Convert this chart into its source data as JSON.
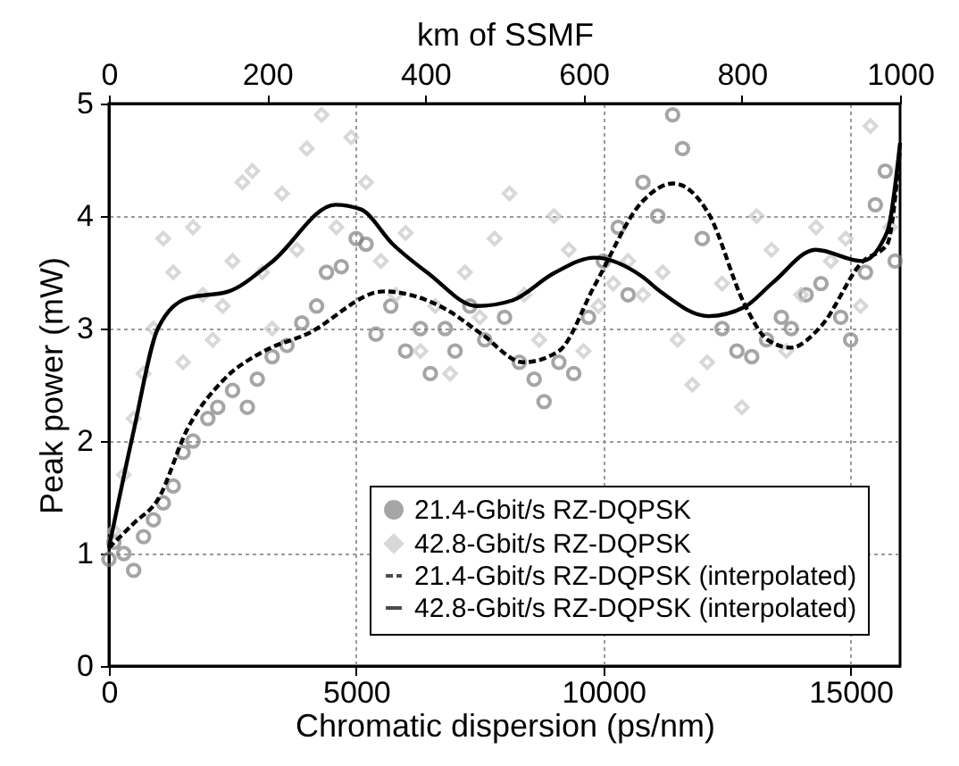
{
  "chart_data": {
    "type": "scatter",
    "xlabel": "Chromatic dispersion (ps/nm)",
    "ylabel": "Peak power (mW)",
    "x2label": "km of SSMF",
    "xlim": [
      0,
      16000
    ],
    "xticks": [
      0,
      5000,
      10000,
      15000
    ],
    "ylim": [
      0,
      5
    ],
    "yticks": [
      0,
      1,
      2,
      3,
      4,
      5
    ],
    "x2lim": [
      0,
      1000
    ],
    "x2ticks": [
      0,
      200,
      400,
      600,
      800,
      1000
    ],
    "grid": true,
    "legend": "bottom right",
    "series": [
      {
        "name": "21.4-Gbit/s RZ-DQPSK",
        "marker": "circle",
        "color": "#808080",
        "x": [
          0,
          100,
          300,
          500,
          700,
          900,
          1100,
          1300,
          1500,
          1700,
          2000,
          2200,
          2500,
          2800,
          3000,
          3300,
          3600,
          3900,
          4200,
          4400,
          4700,
          5000,
          5200,
          5400,
          5700,
          6000,
          6300,
          6500,
          6800,
          7000,
          7300,
          7600,
          8000,
          8300,
          8600,
          8800,
          9100,
          9400,
          9700,
          10000,
          10300,
          10500,
          10800,
          11100,
          11400,
          11600,
          12000,
          12400,
          12700,
          13000,
          13300,
          13600,
          13800,
          14100,
          14400,
          14800,
          15000,
          15300,
          15500,
          15700,
          15900
        ],
        "values": [
          0.95,
          1.1,
          1.0,
          0.85,
          1.15,
          1.3,
          1.45,
          1.6,
          1.9,
          2.0,
          2.2,
          2.3,
          2.45,
          2.3,
          2.55,
          2.75,
          2.85,
          3.05,
          3.2,
          3.5,
          3.55,
          3.8,
          3.75,
          2.95,
          3.2,
          2.8,
          3.0,
          2.6,
          3.0,
          2.8,
          3.2,
          2.9,
          3.1,
          2.7,
          2.55,
          2.35,
          2.7,
          2.6,
          3.1,
          3.6,
          3.9,
          3.3,
          4.3,
          4.0,
          4.9,
          4.6,
          3.8,
          3.0,
          2.8,
          2.75,
          2.9,
          3.1,
          3.0,
          3.3,
          3.4,
          3.1,
          2.9,
          3.5,
          4.1,
          4.4,
          3.6
        ]
      },
      {
        "name": "42.8-Gbit/s RZ-DQPSK",
        "marker": "diamond",
        "color": "#c8c8c8",
        "x": [
          100,
          300,
          500,
          700,
          900,
          1100,
          1300,
          1500,
          1700,
          1900,
          2100,
          2300,
          2500,
          2700,
          2900,
          3100,
          3300,
          3500,
          3800,
          4000,
          4300,
          4600,
          4900,
          5200,
          5500,
          5800,
          6000,
          6300,
          6600,
          6900,
          7200,
          7500,
          7800,
          8100,
          8400,
          8700,
          9000,
          9300,
          9600,
          9900,
          10200,
          10500,
          10800,
          11200,
          11500,
          11800,
          12100,
          12400,
          12800,
          13100,
          13400,
          13700,
          14000,
          14300,
          14600,
          14900,
          15200,
          15400,
          15800
        ],
        "values": [
          1.2,
          1.7,
          2.2,
          2.6,
          3.0,
          3.8,
          3.5,
          2.7,
          3.9,
          3.3,
          2.9,
          3.2,
          3.6,
          4.3,
          4.4,
          3.5,
          3.0,
          4.2,
          3.7,
          4.6,
          4.9,
          3.9,
          4.7,
          4.3,
          3.6,
          3.3,
          3.85,
          2.8,
          3.2,
          2.6,
          3.5,
          3.1,
          3.8,
          4.2,
          3.3,
          2.9,
          4.0,
          3.7,
          2.8,
          3.2,
          3.4,
          3.6,
          3.3,
          3.5,
          2.9,
          2.5,
          2.7,
          3.4,
          2.3,
          4.0,
          3.7,
          2.8,
          3.3,
          3.9,
          3.6,
          3.8,
          3.2,
          4.8,
          3.9
        ]
      },
      {
        "name": "21.4-Gbit/s RZ-DQPSK (interpolated)",
        "type": "line",
        "line_style": "dashed",
        "marker": "none",
        "color": "#000000",
        "x": [
          0,
          505,
          990,
          1590,
          2310,
          3140,
          4000,
          5560,
          6820,
          7540,
          8380,
          9100,
          9820,
          10790,
          11410,
          12130,
          12850,
          13320,
          13790,
          14400,
          15230,
          15740,
          16000
        ],
        "values": [
          1.05,
          1.27,
          1.48,
          2.11,
          2.54,
          2.8,
          2.95,
          3.33,
          3.17,
          2.95,
          2.7,
          2.8,
          3.38,
          4.13,
          4.29,
          4.02,
          3.22,
          2.9,
          2.83,
          3.02,
          3.59,
          3.75,
          4.6
        ]
      },
      {
        "name": "42.8-Gbit/s RZ-DQPSK (interpolated)",
        "type": "line",
        "line_style": "solid",
        "marker": "none",
        "color": "#000000",
        "x": [
          0,
          505,
          990,
          1590,
          2420,
          3290,
          4580,
          5090,
          5740,
          6460,
          7440,
          8160,
          8990,
          9820,
          10790,
          11150,
          12130,
          12850,
          13430,
          14290,
          15230,
          15740,
          16000
        ],
        "values": [
          1.05,
          2.1,
          3.0,
          3.27,
          3.33,
          3.59,
          4.1,
          4.06,
          3.75,
          3.49,
          3.2,
          3.25,
          3.49,
          3.63,
          3.46,
          3.33,
          3.11,
          3.19,
          3.41,
          3.7,
          3.6,
          3.86,
          4.65
        ]
      }
    ]
  }
}
